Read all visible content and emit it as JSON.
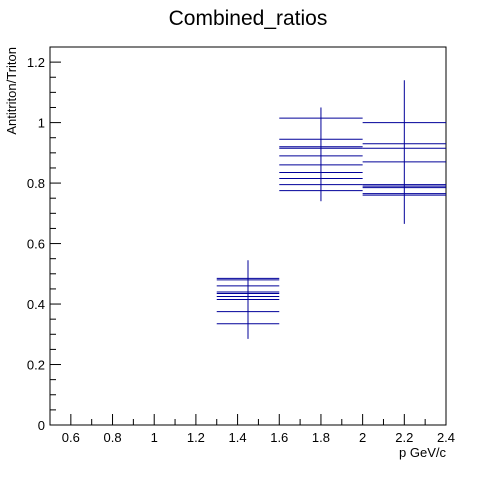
{
  "chart_data": {
    "type": "scatter",
    "title": "Combined_ratios",
    "xlabel": "p GeV/c",
    "ylabel": "Antitriton/Triton",
    "xlim": [
      0.5,
      2.4
    ],
    "ylim": [
      0,
      1.25
    ],
    "xticks": [
      "0.6",
      "0.8",
      "1",
      "1.2",
      "1.4",
      "1.6",
      "1.8",
      "2",
      "2.2",
      "2.4"
    ],
    "yticks": [
      "0",
      "0.2",
      "0.4",
      "0.6",
      "0.8",
      "1",
      "1.2"
    ],
    "grid": false,
    "line_color": "#000099",
    "bins": [
      {
        "x_low": 1.3,
        "x_high": 1.6,
        "x_center": 1.45,
        "err_low": 0.285,
        "err_high": 0.545,
        "values": [
          0.335,
          0.375,
          0.415,
          0.425,
          0.435,
          0.44,
          0.46,
          0.48,
          0.485
        ]
      },
      {
        "x_low": 1.6,
        "x_high": 2.0,
        "x_center": 1.8,
        "err_low": 0.74,
        "err_high": 1.05,
        "values": [
          0.775,
          0.795,
          0.815,
          0.835,
          0.86,
          0.89,
          0.915,
          0.92,
          0.945,
          1.015
        ]
      },
      {
        "x_low": 2.0,
        "x_high": 2.4,
        "x_center": 2.2,
        "err_low": 0.665,
        "err_high": 1.14,
        "values": [
          0.76,
          0.765,
          0.785,
          0.79,
          0.795,
          0.87,
          0.915,
          0.93,
          1.0
        ]
      }
    ]
  }
}
